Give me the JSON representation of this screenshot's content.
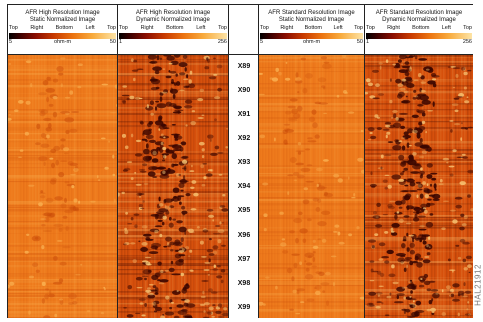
{
  "tracks": [
    {
      "title": "AFR High Resolution Image",
      "subtitle": "Static Normalized Image",
      "scale_labels": [
        "Top",
        "Right",
        "Bottom",
        "Left",
        "Top"
      ],
      "range_min": "5",
      "range_max": "50",
      "unit": "ohm-m"
    },
    {
      "title": "AFR High Resolution Image",
      "subtitle": "Dynamic Normalized Image",
      "scale_labels": [
        "Top",
        "Right",
        "Bottom",
        "Left",
        "Top"
      ],
      "range_min": "1",
      "range_max": "256",
      "unit": ""
    },
    {
      "title": "AFR Standard Resolution Image",
      "subtitle": "Static Normalized Image",
      "scale_labels": [
        "Top",
        "Right",
        "Bottom",
        "Left",
        "Top"
      ],
      "range_min": "5",
      "range_max": "50",
      "unit": "ohm-m"
    },
    {
      "title": "AFR Standard Resolution Image",
      "subtitle": "Dynamic Normalized Image",
      "scale_labels": [
        "Top",
        "Right",
        "Bottom",
        "Left",
        "Top"
      ],
      "range_min": "1",
      "range_max": "256",
      "unit": ""
    }
  ],
  "depths": [
    "X89",
    "X90",
    "X91",
    "X92",
    "X93",
    "X94",
    "X95",
    "X96",
    "X97",
    "X98",
    "X99"
  ],
  "colors": {
    "static_base": "#ee7a1c",
    "static_dark": "#c94a08",
    "static_light": "#fbb656",
    "dynamic_base": "#d6500c",
    "dynamic_dark": "#3a0600",
    "dynamic_light": "#fbcf7c"
  },
  "watermark": "HAL21912"
}
